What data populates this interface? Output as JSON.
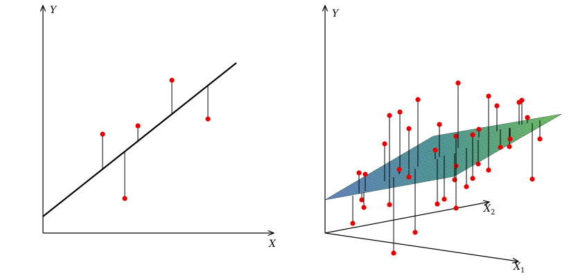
{
  "left": {
    "y_label": "Y",
    "x_label": "X"
  },
  "right": {
    "y_label": "Y",
    "x1_label": "X",
    "x1_subscript": "1",
    "x2_label": "X",
    "x2_subscript": "2"
  }
}
